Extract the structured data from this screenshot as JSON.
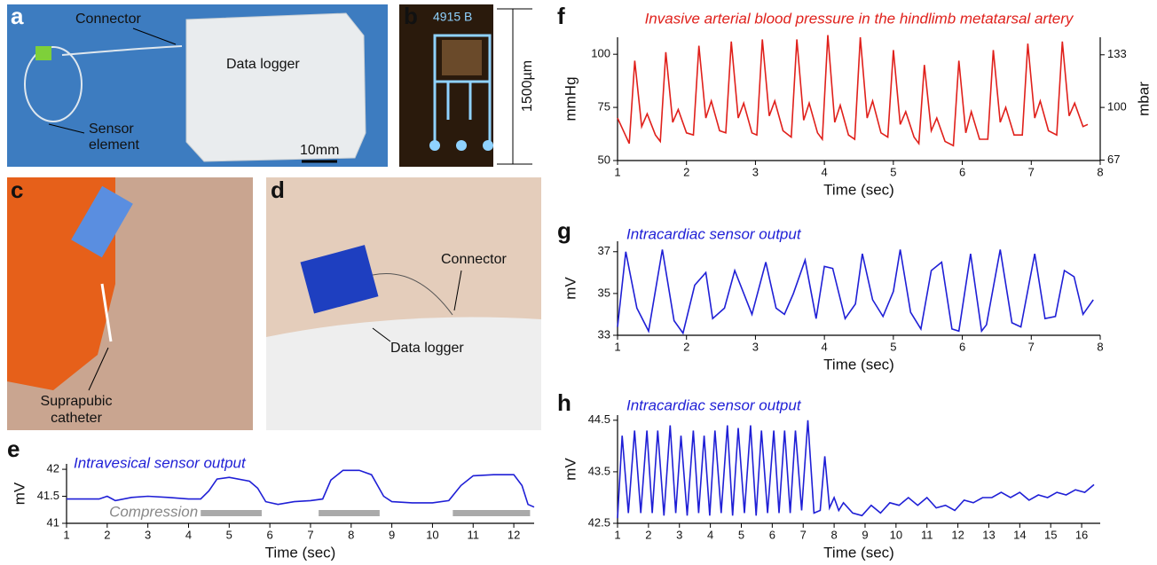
{
  "photos": {
    "a": {
      "letter": "a",
      "connector": "Connector",
      "data_logger": "Data logger",
      "sensor_element": [
        "Sensor",
        "element"
      ],
      "scale": "10mm"
    },
    "b": {
      "letter": "b",
      "chip_label": "4915 B",
      "scale": "1500µm"
    },
    "c": {
      "letter": "c",
      "catheter": [
        "Suprapubic",
        "catheter"
      ]
    },
    "d": {
      "letter": "d",
      "connector": "Connector",
      "data_logger": "Data logger"
    }
  },
  "chart_data": [
    {
      "type": "line",
      "panel": "f",
      "title": "Invasive arterial blood pressure in the hindlimb metatarsal artery",
      "title_color": "#e0201b",
      "xlabel": "Time (sec)",
      "ylabel": "mmHg",
      "y2label": "mbar",
      "color": "#e0201b",
      "xlim": [
        1,
        8
      ],
      "xticks": [
        1,
        2,
        3,
        4,
        5,
        6,
        7,
        8
      ],
      "ylim": [
        50,
        108
      ],
      "yticks": [
        50,
        75,
        100
      ],
      "y2lim": [
        66.7,
        144
      ],
      "y2ticks": [
        67,
        100,
        133
      ],
      "x": [
        1.0,
        1.17,
        1.25,
        1.35,
        1.43,
        1.55,
        1.62,
        1.7,
        1.8,
        1.88,
        2.0,
        2.1,
        2.18,
        2.28,
        2.36,
        2.48,
        2.57,
        2.65,
        2.75,
        2.83,
        2.95,
        3.02,
        3.1,
        3.2,
        3.28,
        3.4,
        3.52,
        3.6,
        3.7,
        3.78,
        3.9,
        3.97,
        4.05,
        4.15,
        4.23,
        4.35,
        4.44,
        4.52,
        4.62,
        4.7,
        4.82,
        4.92,
        5.0,
        5.1,
        5.18,
        5.3,
        5.37,
        5.45,
        5.55,
        5.63,
        5.75,
        5.87,
        5.95,
        6.05,
        6.13,
        6.25,
        6.37,
        6.45,
        6.55,
        6.63,
        6.75,
        6.87,
        6.95,
        7.05,
        7.13,
        7.25,
        7.37,
        7.45,
        7.55,
        7.63,
        7.75,
        7.82
      ],
      "values": [
        70,
        58,
        97,
        66,
        72,
        62,
        59,
        101,
        68,
        74,
        63,
        62,
        104,
        70,
        78,
        64,
        63,
        106,
        70,
        77,
        63,
        62,
        107,
        71,
        78,
        64,
        61,
        107,
        69,
        77,
        63,
        60,
        109,
        68,
        76,
        62,
        60,
        108,
        70,
        78,
        63,
        61,
        102,
        67,
        73,
        61,
        58,
        95,
        64,
        70,
        59,
        57,
        97,
        63,
        73,
        60,
        60,
        102,
        68,
        75,
        62,
        62,
        105,
        70,
        78,
        64,
        62,
        106,
        71,
        77,
        66,
        67
      ]
    },
    {
      "type": "line",
      "panel": "g",
      "title": "Intracardiac sensor output",
      "title_color": "#1f1fd6",
      "xlabel": "Time (sec)",
      "ylabel": "mV",
      "color": "#1f1fd6",
      "xlim": [
        1,
        8
      ],
      "xticks": [
        1,
        2,
        3,
        4,
        5,
        6,
        7,
        8
      ],
      "ylim": [
        33,
        37.5
      ],
      "yticks": [
        33,
        35,
        37
      ],
      "x": [
        1.0,
        1.12,
        1.28,
        1.45,
        1.65,
        1.82,
        1.95,
        2.12,
        2.28,
        2.38,
        2.55,
        2.7,
        2.95,
        3.15,
        3.3,
        3.42,
        3.55,
        3.72,
        3.88,
        4.0,
        4.12,
        4.3,
        4.45,
        4.55,
        4.7,
        4.85,
        5.0,
        5.1,
        5.25,
        5.4,
        5.55,
        5.7,
        5.85,
        5.95,
        6.12,
        6.28,
        6.35,
        6.55,
        6.72,
        6.85,
        7.05,
        7.2,
        7.35,
        7.48,
        7.62,
        7.75,
        7.9
      ],
      "values": [
        33.4,
        37.0,
        34.3,
        33.2,
        37.1,
        33.7,
        33.1,
        35.4,
        36.0,
        33.8,
        34.3,
        36.1,
        34.0,
        36.5,
        34.3,
        34.0,
        35.0,
        36.6,
        33.8,
        36.3,
        36.2,
        33.8,
        34.5,
        36.9,
        34.7,
        33.9,
        35.1,
        37.1,
        34.1,
        33.3,
        36.1,
        36.5,
        33.3,
        33.2,
        36.9,
        33.2,
        33.5,
        37.1,
        33.6,
        33.4,
        36.9,
        33.8,
        33.9,
        36.1,
        35.8,
        34.0,
        34.7
      ]
    },
    {
      "type": "line",
      "panel": "h",
      "title": "Intracardiac sensor output",
      "title_color": "#1f1fd6",
      "xlabel": "Time (sec)",
      "ylabel": "mV",
      "color": "#1f1fd6",
      "xlim": [
        1,
        16.6
      ],
      "xticks": [
        1,
        2,
        3,
        4,
        5,
        6,
        7,
        8,
        9,
        10,
        11,
        12,
        13,
        14,
        15,
        16
      ],
      "ylim": [
        42.5,
        44.6
      ],
      "yticks": [
        42.5,
        43.5,
        44.5
      ],
      "x": [
        1.0,
        1.15,
        1.35,
        1.55,
        1.75,
        1.95,
        2.12,
        2.3,
        2.5,
        2.7,
        2.88,
        3.05,
        3.25,
        3.45,
        3.62,
        3.8,
        3.98,
        4.15,
        4.35,
        4.55,
        4.72,
        4.9,
        5.1,
        5.3,
        5.48,
        5.65,
        5.85,
        6.05,
        6.22,
        6.4,
        6.58,
        6.75,
        6.95,
        7.15,
        7.35,
        7.55,
        7.7,
        7.85,
        8.0,
        8.15,
        8.3,
        8.6,
        8.9,
        9.2,
        9.5,
        9.8,
        10.1,
        10.4,
        10.7,
        11.0,
        11.3,
        11.6,
        11.9,
        12.2,
        12.5,
        12.8,
        13.1,
        13.4,
        13.7,
        14.0,
        14.3,
        14.6,
        14.9,
        15.2,
        15.5,
        15.8,
        16.1,
        16.4
      ],
      "values": [
        42.6,
        44.2,
        42.7,
        44.3,
        42.7,
        44.3,
        42.7,
        44.3,
        42.65,
        44.4,
        42.7,
        44.2,
        42.65,
        44.3,
        42.7,
        44.2,
        42.65,
        44.3,
        42.7,
        44.4,
        42.65,
        44.35,
        42.7,
        44.4,
        42.65,
        44.3,
        42.7,
        44.3,
        42.7,
        44.3,
        42.7,
        44.3,
        42.75,
        44.5,
        42.7,
        42.75,
        43.8,
        42.8,
        43.0,
        42.75,
        42.9,
        42.7,
        42.65,
        42.85,
        42.7,
        42.9,
        42.85,
        43.0,
        42.85,
        43.0,
        42.8,
        42.85,
        42.75,
        42.95,
        42.9,
        43.0,
        43.0,
        43.1,
        43.0,
        43.1,
        42.95,
        43.05,
        43.0,
        43.1,
        43.05,
        43.15,
        43.1,
        43.25
      ]
    },
    {
      "type": "line",
      "panel": "e",
      "title": "Intravesical sensor output",
      "title_color": "#1f1fd6",
      "xlabel": "Time (sec)",
      "ylabel": "mV",
      "color": "#1f1fd6",
      "xlim": [
        1,
        12.5
      ],
      "xticks": [
        1,
        2,
        3,
        4,
        5,
        6,
        7,
        8,
        9,
        10,
        11,
        12
      ],
      "ylim": [
        41,
        42.1
      ],
      "yticks": [
        41,
        41.5,
        42
      ],
      "annotation": "Compression",
      "compression": [
        [
          4.3,
          5.8
        ],
        [
          7.2,
          8.7
        ],
        [
          10.5,
          12.4
        ]
      ],
      "x": [
        1.0,
        1.8,
        2.0,
        2.2,
        2.6,
        3.0,
        3.5,
        4.0,
        4.3,
        4.5,
        4.7,
        5.0,
        5.5,
        5.7,
        5.9,
        6.2,
        6.6,
        7.0,
        7.3,
        7.5,
        7.8,
        8.2,
        8.5,
        8.8,
        9.0,
        9.5,
        10.0,
        10.4,
        10.7,
        11.0,
        11.5,
        12.0,
        12.2,
        12.35,
        12.5
      ],
      "values": [
        41.45,
        41.45,
        41.5,
        41.42,
        41.48,
        41.5,
        41.48,
        41.45,
        41.45,
        41.6,
        41.82,
        41.85,
        41.78,
        41.65,
        41.4,
        41.35,
        41.4,
        41.42,
        41.45,
        41.8,
        41.98,
        41.98,
        41.9,
        41.5,
        41.4,
        41.38,
        41.38,
        41.42,
        41.7,
        41.88,
        41.9,
        41.9,
        41.7,
        41.35,
        41.3
      ]
    }
  ]
}
